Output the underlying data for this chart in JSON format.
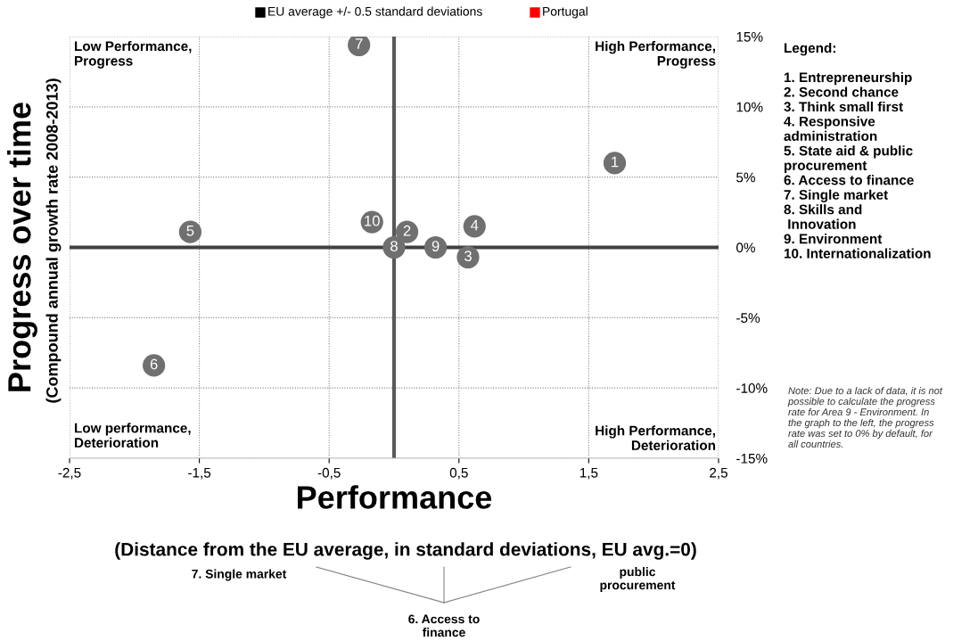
{
  "chart_data": {
    "type": "scatter",
    "xlabel": "Performance",
    "ylabel": "Progress over time",
    "x": [
      1.7,
      0.1,
      0.57,
      0.62,
      -1.57,
      -1.85,
      -0.27,
      0.0,
      0.32,
      -0.17
    ],
    "series": [
      {
        "color": "#707070",
        "values": [
          6.0,
          1.1,
          -0.7,
          1.5,
          1.1,
          -8.4,
          14.4,
          0.0,
          0.0,
          1.8
        ]
      }
    ],
    "marker": "circle",
    "xlim": [
      -2.5,
      2.5
    ],
    "xticks": [
      {
        "value": -2.5,
        "label": "-2,5"
      },
      {
        "value": -1.5,
        "label": "-1,5"
      },
      {
        "value": -0.5,
        "label": "-0,5"
      },
      {
        "value": 0.5,
        "label": "0,5"
      },
      {
        "value": 1.5,
        "label": "1,5"
      },
      {
        "value": 2.5,
        "label": "2,5"
      }
    ],
    "ylim": [
      -15,
      15
    ],
    "yticks": [
      {
        "value": -15,
        "label": "-15%"
      },
      {
        "value": -10,
        "label": "-10%"
      },
      {
        "value": -5,
        "label": "-5%"
      },
      {
        "value": 0,
        "label": "0%"
      },
      {
        "value": 5,
        "label": "5%"
      },
      {
        "value": 10,
        "label": "10%"
      },
      {
        "value": 15,
        "label": "15%"
      }
    ],
    "grid": true,
    "ref_lines": [
      {
        "axis": "x",
        "value": 0,
        "color": "#595959"
      },
      {
        "axis": "y",
        "value": 0,
        "color": "#404040"
      }
    ],
    "annotations": [
      "(Compound annual growth rate 2008-2013)",
      "(Distance from the EU average, in standard deviations, EU avg.=0)",
      "Low Performance,\nProgress",
      "High Performance,\nProgress",
      "Low performance,\nDeterioration",
      "High Performance,\nDeterioration",
      "Legend:\n\n1. Entrepreneurship\n2. Second chance\n3. Think small first\n4. Responsive\nadministration\n5. State aid & public\nprocurement\n6. Access to finance\n7. Single market\n8. Skills and\n Innovation\n9. Environment\n10. Internationalization",
      "Note: Due to a lack of data, it is not\npossible to calculate the progress\nrate for Area 9 - Environment. In\nthe graph to the left, the progress\nrate was set to 0% by default, for\nall countries.",
      "EU average +/- 0.5 standard deviations",
      "Portugal",
      "7. Single market",
      "public\nprocurement",
      "6. Access to\nfinance",
      {
        "text": "1",
        "x": 1.7,
        "y": 6.0
      },
      {
        "text": "2",
        "x": 0.1,
        "y": 1.1
      },
      {
        "text": "3",
        "x": 0.57,
        "y": -0.7
      },
      {
        "text": "4",
        "x": 0.62,
        "y": 1.5
      },
      {
        "text": "5",
        "x": -1.57,
        "y": 1.1
      },
      {
        "text": "6",
        "x": -1.85,
        "y": -8.4
      },
      {
        "text": "7",
        "x": -0.27,
        "y": 14.4
      },
      {
        "text": "8",
        "x": 0.0,
        "y": 0.0
      },
      {
        "text": "9",
        "x": 0.32,
        "y": 0.0
      },
      {
        "text": "10",
        "x": -0.17,
        "y": 1.8
      }
    ]
  }
}
